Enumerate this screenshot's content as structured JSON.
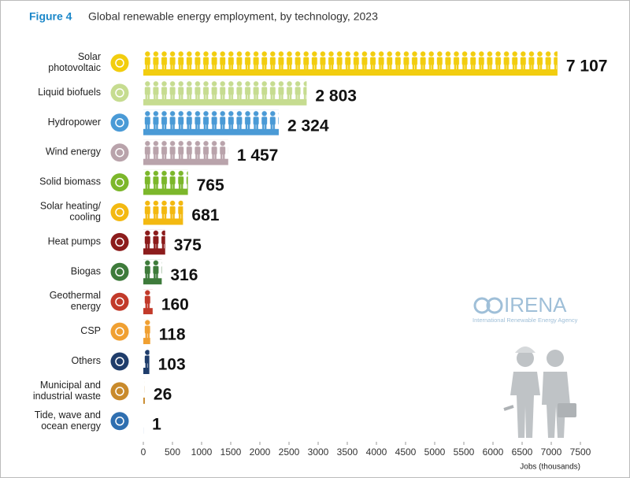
{
  "chart_data": {
    "type": "bar",
    "orientation": "horizontal",
    "figure_label": "Figure 4",
    "title": "Global renewable energy employment, by technology, 2023",
    "categories": [
      "Solar\nphotovoltaic",
      "Liquid biofuels",
      "Hydropower",
      "Wind energy",
      "Solid biomass",
      "Solar heating/\ncooling",
      "Heat pumps",
      "Biogas",
      "Geothermal\nenergy",
      "CSP",
      "Others",
      "Municipal and\nindustrial waste",
      "Tide, wave and\nocean energy"
    ],
    "values": [
      7107,
      2803,
      2324,
      1457,
      765,
      681,
      375,
      316,
      160,
      118,
      103,
      26,
      1
    ],
    "value_labels": [
      "7 107",
      "2 803",
      "2 324",
      "1 457",
      "765",
      "681",
      "375",
      "316",
      "160",
      "118",
      "103",
      "26",
      "1"
    ],
    "colors": [
      "#f2cd0f",
      "#c6dc90",
      "#4a9ad6",
      "#b9a3ab",
      "#7cb72b",
      "#f3b911",
      "#8c1c1c",
      "#3e7b3b",
      "#c23a2a",
      "#f0a032",
      "#1f3d6b",
      "#c98a2b",
      "#2f6fb0"
    ],
    "xlabel": "Jobs (thousands)",
    "xlim": [
      0,
      7500
    ],
    "xticks": [
      0,
      500,
      1000,
      1500,
      2000,
      2500,
      3000,
      3500,
      4000,
      4500,
      5000,
      5500,
      6000,
      6500,
      7000,
      7500
    ],
    "annotations": [
      "IRENA",
      "International Renewable Energy Agency"
    ]
  }
}
